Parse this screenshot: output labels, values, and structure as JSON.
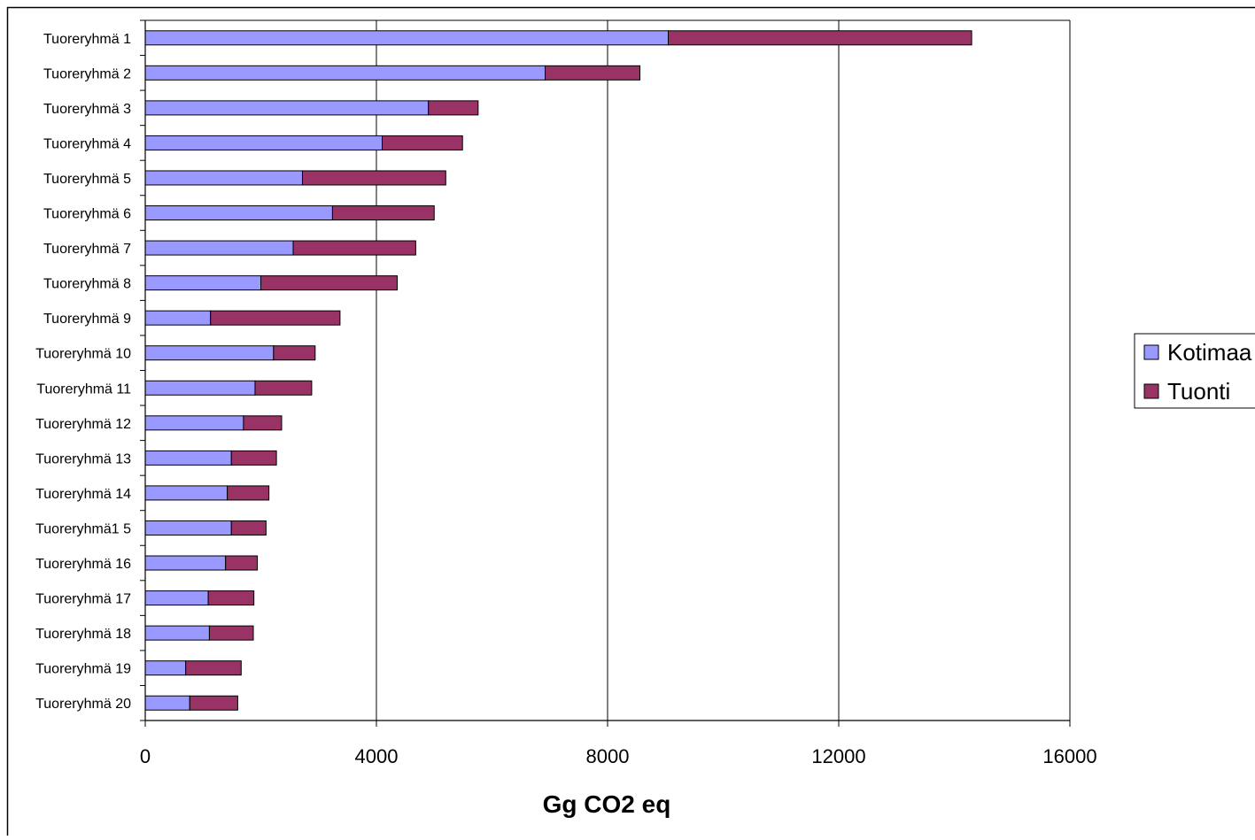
{
  "chart_data": {
    "type": "bar",
    "orientation": "horizontal",
    "stacked": true,
    "categories": [
      "Tuoreryhmä 1",
      "Tuoreryhmä 2",
      "Tuoreryhmä 3",
      "Tuoreryhmä 4",
      "Tuoreryhmä 5",
      "Tuoreryhmä 6",
      "Tuoreryhmä 7",
      "Tuoreryhmä 8",
      "Tuoreryhmä 9",
      "Tuoreryhmä 10",
      "Tuoreryhmä 11",
      "Tuoreryhmä 12",
      "Tuoreryhmä 13",
      "Tuoreryhmä 14",
      "Tuoreryhmä1 5",
      "Tuoreryhmä 16",
      "Tuoreryhmä 17",
      "Tuoreryhmä 18",
      "Tuoreryhmä 19",
      "Tuoreryhmä 20"
    ],
    "series": [
      {
        "name": "Kotimaa",
        "color": "#9999ff",
        "values": [
          9050,
          6920,
          4900,
          4100,
          2720,
          3240,
          2560,
          2000,
          1130,
          2220,
          1900,
          1700,
          1490,
          1420,
          1490,
          1390,
          1090,
          1110,
          700,
          770
        ]
      },
      {
        "name": "Tuonti",
        "color": "#993366",
        "values": [
          5250,
          1640,
          860,
          1390,
          2480,
          1760,
          2120,
          2360,
          2240,
          720,
          980,
          660,
          780,
          720,
          600,
          550,
          790,
          760,
          960,
          830
        ]
      }
    ],
    "xlabel": "Gg CO2 eq",
    "ylabel": "",
    "xlim": [
      0,
      16000
    ],
    "xticks": [
      "0",
      "4000",
      "8000",
      "12000",
      "16000"
    ],
    "xtick_values": [
      0,
      4000,
      8000,
      12000,
      16000
    ],
    "grid": "vertical",
    "legend_position": "right"
  }
}
